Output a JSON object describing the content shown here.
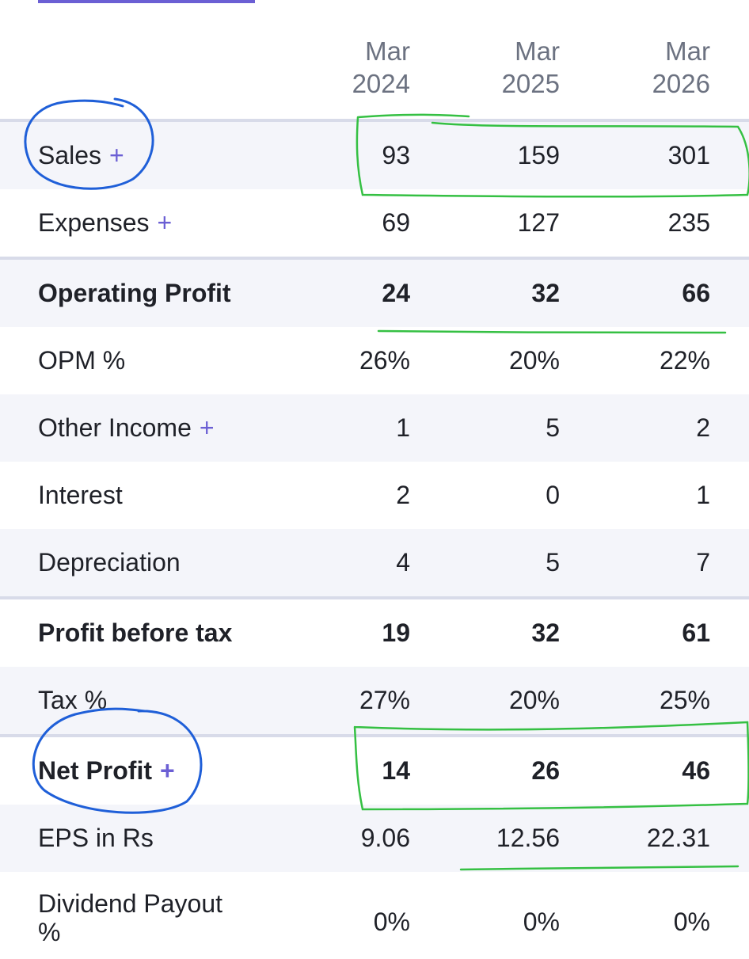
{
  "header": {
    "columns": [
      "Mar\n2024",
      "Mar\n2025",
      "Mar\n2026"
    ]
  },
  "rows": [
    {
      "label": "Sales",
      "has_plus": true,
      "bold": false,
      "shaded": true,
      "rule": true,
      "values": [
        "93",
        "159",
        "301"
      ]
    },
    {
      "label": "Expenses",
      "has_plus": true,
      "bold": false,
      "shaded": false,
      "rule": false,
      "values": [
        "69",
        "127",
        "235"
      ]
    },
    {
      "label": "Operating Profit",
      "has_plus": false,
      "bold": true,
      "shaded": true,
      "rule": true,
      "values": [
        "24",
        "32",
        "66"
      ]
    },
    {
      "label": "OPM %",
      "has_plus": false,
      "bold": false,
      "shaded": false,
      "rule": false,
      "values": [
        "26%",
        "20%",
        "22%"
      ]
    },
    {
      "label": "Other Income",
      "has_plus": true,
      "bold": false,
      "shaded": true,
      "rule": false,
      "values": [
        "1",
        "5",
        "2"
      ]
    },
    {
      "label": "Interest",
      "has_plus": false,
      "bold": false,
      "shaded": false,
      "rule": false,
      "values": [
        "2",
        "0",
        "1"
      ]
    },
    {
      "label": "Depreciation",
      "has_plus": false,
      "bold": false,
      "shaded": true,
      "rule": false,
      "values": [
        "4",
        "5",
        "7"
      ]
    },
    {
      "label": "Profit before tax",
      "has_plus": false,
      "bold": true,
      "shaded": false,
      "rule": true,
      "values": [
        "19",
        "32",
        "61"
      ]
    },
    {
      "label": "Tax %",
      "has_plus": false,
      "bold": false,
      "shaded": true,
      "rule": false,
      "values": [
        "27%",
        "20%",
        "25%"
      ]
    },
    {
      "label": "Net Profit",
      "has_plus": true,
      "bold": true,
      "shaded": false,
      "rule": true,
      "values": [
        "14",
        "26",
        "46"
      ]
    },
    {
      "label": "EPS in Rs",
      "has_plus": false,
      "bold": false,
      "shaded": true,
      "rule": false,
      "values": [
        "9.06",
        "12.56",
        "22.31"
      ]
    },
    {
      "label": "Dividend Payout %",
      "has_plus": false,
      "bold": false,
      "shaded": false,
      "rule": false,
      "tall": true,
      "values": [
        "0%",
        "0%",
        "0%"
      ]
    }
  ],
  "plus_symbol": "+",
  "colors": {
    "accent": "#6b5fd4",
    "header_text": "#6c7281",
    "shaded_row": "#f4f5fa",
    "divider": "#d8dbe9",
    "annotation_blue": "#1f5fd8",
    "annotation_green": "#35c043"
  }
}
